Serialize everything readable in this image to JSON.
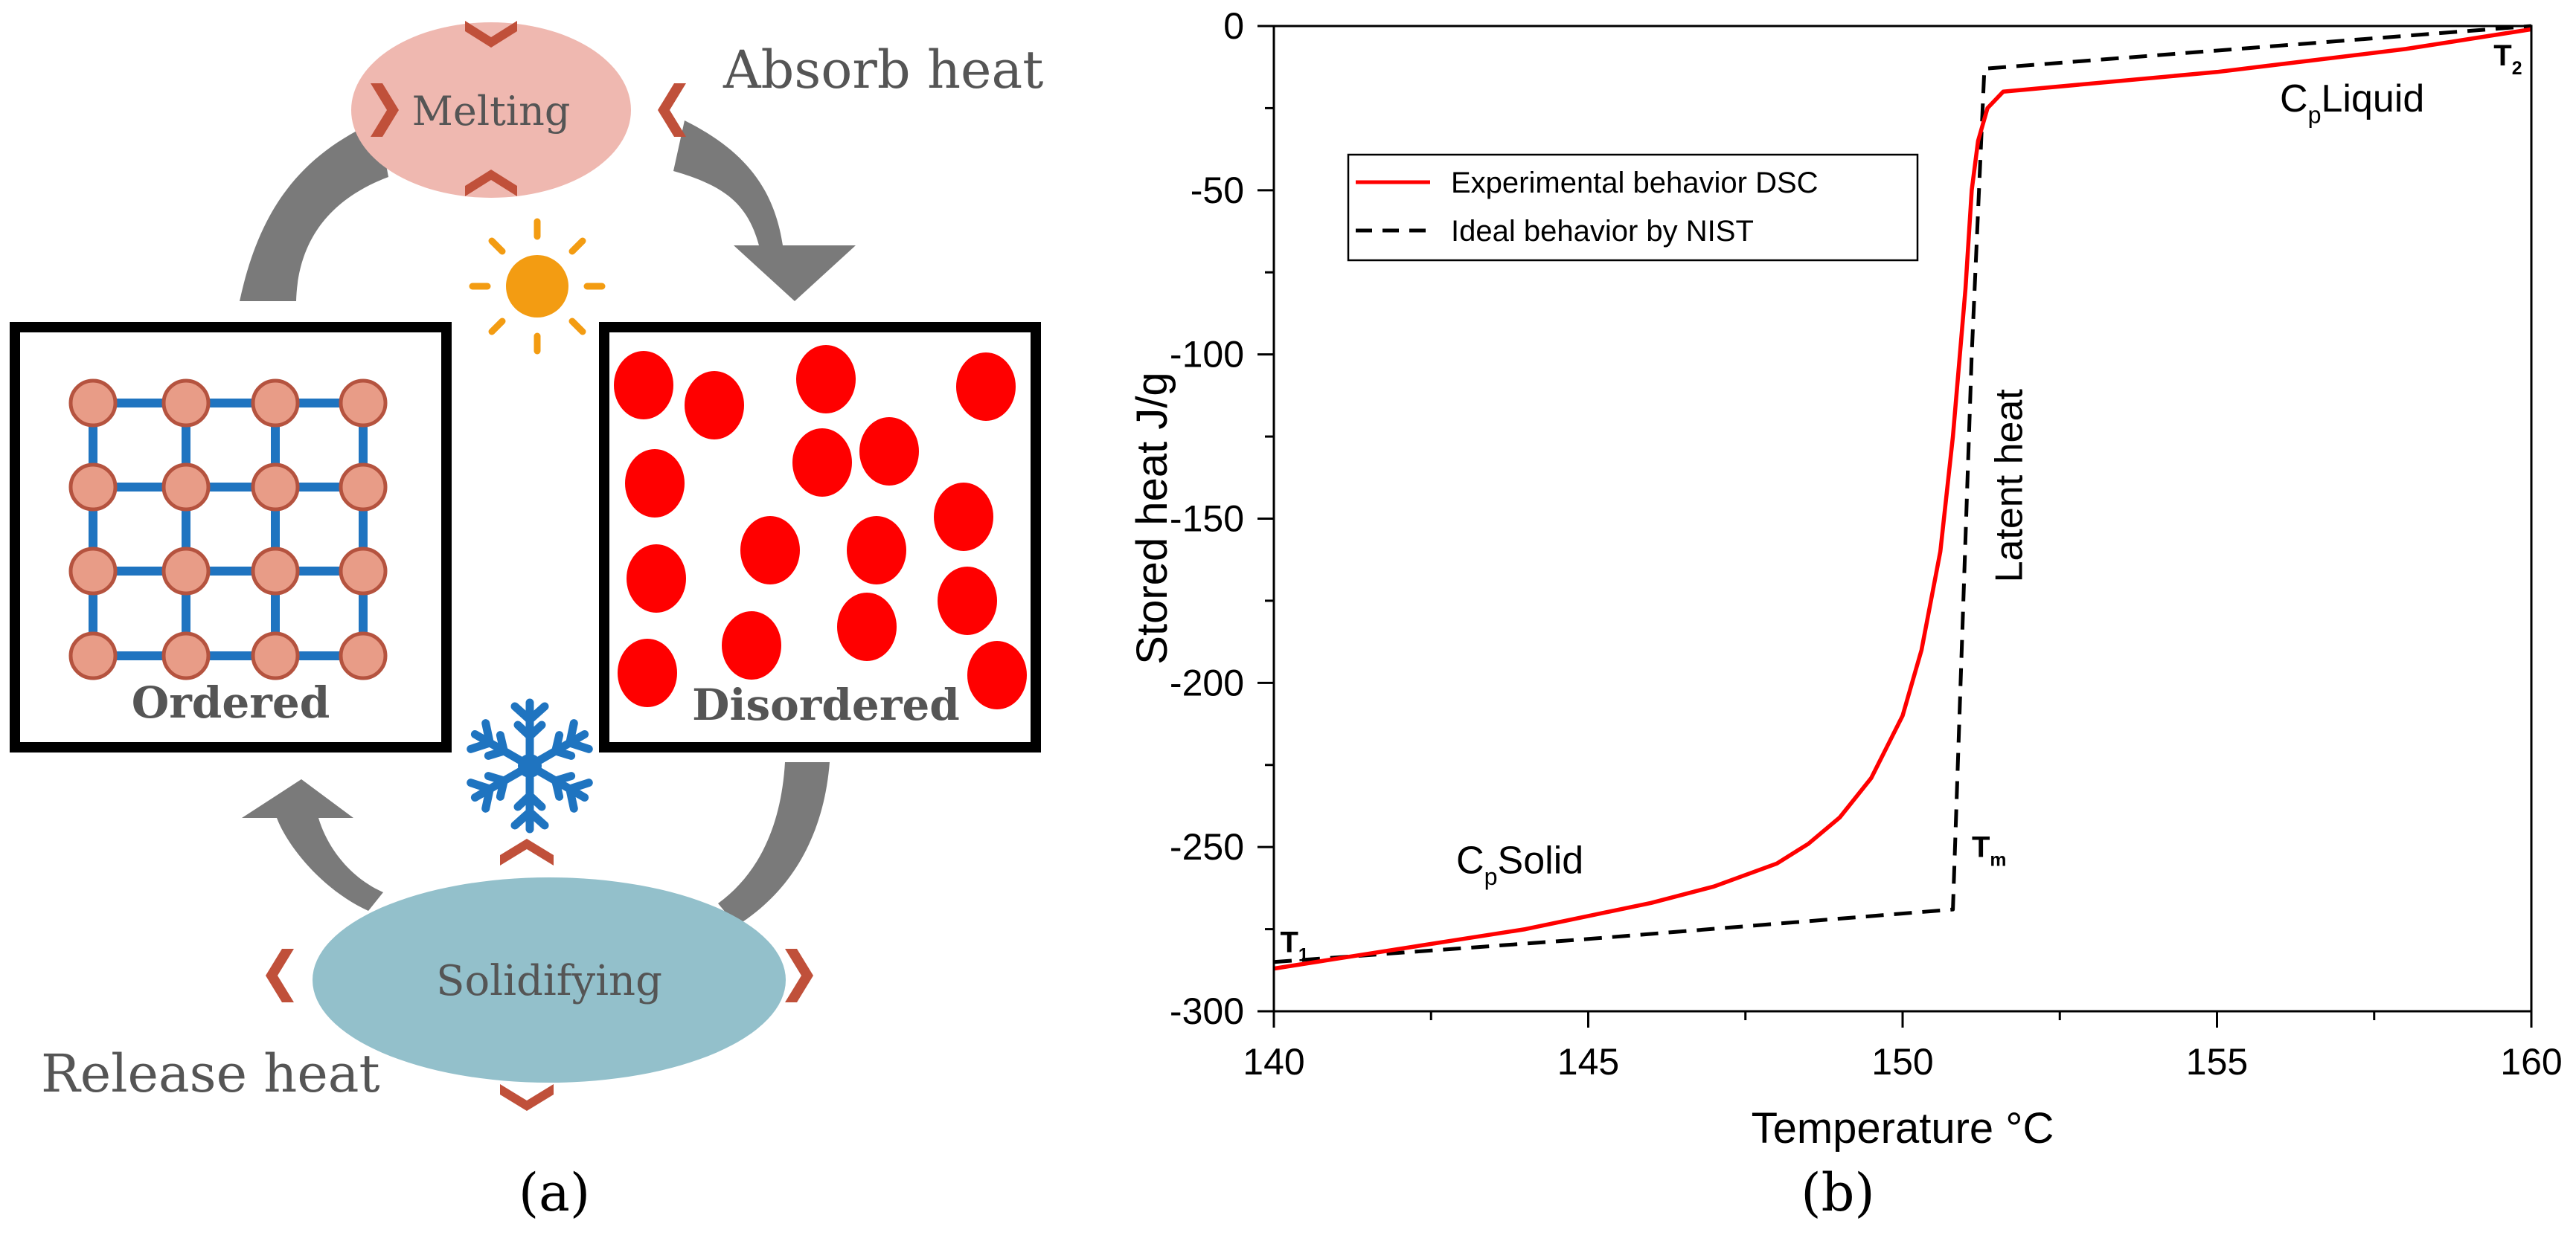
{
  "colors": {
    "lattice_node_fill": "#e89c87",
    "lattice_node_stroke": "#b5533f",
    "lattice_bond": "#1f74c0",
    "disordered_particle": "#ff0000",
    "melting_bubble": "#efb8b0",
    "solidifying_bubble": "#93c0cb",
    "chevron": "#c0503a",
    "cycle_arrow": "#7a7a7a",
    "sun": "#f39c12",
    "snowflake": "#1f74c0",
    "experimental_curve": "#ff0000",
    "ideal_curve": "#000000",
    "label_gray": "#555555"
  },
  "panel_a": {
    "melting_label": "Melting",
    "absorb_label": "Absorb heat",
    "ordered_label": "Ordered",
    "disordered_label": "Disordered",
    "solidifying_label": "Solidifying",
    "release_label": "Release heat",
    "caption": "(a)",
    "icons": [
      "sun-icon",
      "snowflake-icon",
      "chevron-icon",
      "cycle-arrow-icon"
    ]
  },
  "panel_b": {
    "caption": "(b)"
  },
  "chart_data": {
    "type": "line",
    "title": "",
    "xlabel": "Temperature °C",
    "ylabel": "Stored heat J/g",
    "xlim": [
      140,
      160
    ],
    "ylim": [
      -300,
      0
    ],
    "x_ticks": [
      140,
      145,
      150,
      155,
      160
    ],
    "y_ticks": [
      0,
      -50,
      -100,
      -150,
      -200,
      -250,
      -300
    ],
    "x_tick_labels": [
      "140",
      "145",
      "150",
      "155",
      "160"
    ],
    "y_tick_labels": [
      "0",
      "-50",
      "-100",
      "-150",
      "-200",
      "-250",
      "-300"
    ],
    "grid": false,
    "legend": "top-left",
    "series": [
      {
        "name": "Experimental behavior DSC",
        "style": "solid",
        "color": "#ff0000",
        "points": [
          [
            140,
            -287
          ],
          [
            141,
            -284
          ],
          [
            142,
            -281
          ],
          [
            143,
            -278
          ],
          [
            144,
            -275
          ],
          [
            145,
            -271
          ],
          [
            146,
            -267
          ],
          [
            147,
            -262
          ],
          [
            148,
            -255
          ],
          [
            148.5,
            -249
          ],
          [
            149,
            -241
          ],
          [
            149.5,
            -229
          ],
          [
            150,
            -210
          ],
          [
            150.3,
            -190
          ],
          [
            150.6,
            -160
          ],
          [
            150.8,
            -125
          ],
          [
            151,
            -80
          ],
          [
            151.1,
            -50
          ],
          [
            151.2,
            -35
          ],
          [
            151.35,
            -25
          ],
          [
            151.6,
            -20
          ],
          [
            155,
            -14
          ],
          [
            158,
            -7
          ],
          [
            160,
            -1
          ]
        ]
      },
      {
        "name": "Ideal behavior by NIST",
        "style": "dashed",
        "color": "#000000",
        "points": [
          [
            140,
            -285
          ],
          [
            145,
            -278
          ],
          [
            150.8,
            -269
          ],
          [
            150.8,
            -269
          ],
          [
            151.1,
            -100
          ],
          [
            151.3,
            -13
          ],
          [
            160,
            0
          ]
        ]
      }
    ],
    "annotations": {
      "t1": {
        "base": "T",
        "sub": "1",
        "x": 140.1,
        "y": -282
      },
      "t2": {
        "base": "T",
        "sub": "2",
        "x": 159.4,
        "y": -12
      },
      "tm": {
        "base": "T",
        "sub": "m",
        "x": 151.1,
        "y": -253
      },
      "cp_solid": {
        "base": "C",
        "sub": "p",
        "tail": "Solid",
        "x": 142.9,
        "y": -258
      },
      "cp_liquid": {
        "base": "C",
        "sub": "p",
        "tail": "Liquid",
        "x": 156,
        "y": -26
      },
      "latent": {
        "text": "Latent heat",
        "x": 151.9,
        "y": -140
      }
    }
  }
}
